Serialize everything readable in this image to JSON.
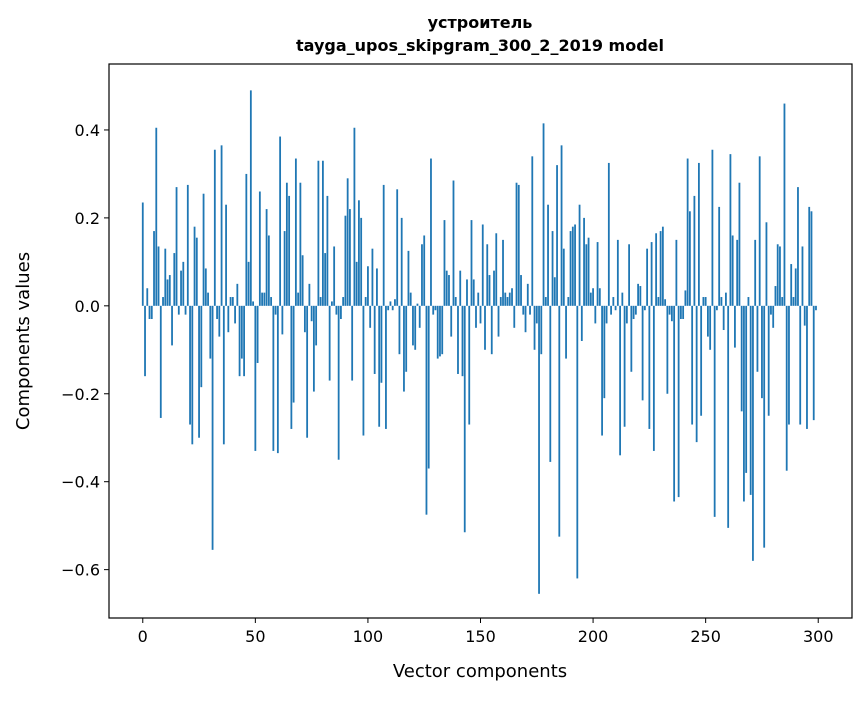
{
  "chart_data": {
    "type": "bar",
    "title": "устроитель",
    "subtitle": "tayga_upos_skipgram_300_2_2019 model",
    "xlabel": "Vector components",
    "ylabel": "Components values",
    "xlim": [
      -15,
      315
    ],
    "ylim": [
      -0.71,
      0.55
    ],
    "grid": false,
    "bar_color": "#1f77b4",
    "x_ticks": [
      0,
      50,
      100,
      150,
      200,
      250,
      300
    ],
    "x_tick_labels": [
      "0",
      "50",
      "100",
      "150",
      "200",
      "250",
      "300"
    ],
    "y_ticks": [
      -0.6,
      -0.4,
      -0.2,
      0.0,
      0.2,
      0.4
    ],
    "y_tick_labels": [
      "−0.6",
      "−0.4",
      "−0.2",
      "0.0",
      "0.2",
      "0.4"
    ],
    "values": [
      0.235,
      -0.16,
      0.04,
      -0.03,
      -0.03,
      0.17,
      0.405,
      0.135,
      -0.255,
      0.02,
      0.13,
      0.06,
      0.07,
      -0.09,
      0.12,
      0.27,
      -0.02,
      0.08,
      0.1,
      -0.02,
      0.275,
      -0.27,
      -0.315,
      0.18,
      0.155,
      -0.3,
      -0.185,
      0.255,
      0.085,
      0.03,
      -0.12,
      -0.555,
      0.355,
      -0.03,
      -0.07,
      0.365,
      -0.315,
      0.23,
      -0.06,
      0.02,
      0.02,
      -0.04,
      0.05,
      -0.16,
      -0.12,
      -0.16,
      0.3,
      0.1,
      0.49,
      0.01,
      -0.33,
      -0.13,
      0.26,
      0.03,
      0.03,
      0.22,
      0.16,
      0.02,
      -0.33,
      -0.02,
      -0.335,
      0.385,
      -0.065,
      0.17,
      0.28,
      0.25,
      -0.28,
      -0.22,
      0.335,
      0.03,
      0.28,
      0.115,
      -0.06,
      -0.3,
      0.05,
      -0.035,
      -0.195,
      -0.09,
      0.33,
      0.02,
      0.33,
      0.12,
      0.25,
      -0.17,
      0.01,
      0.135,
      -0.02,
      -0.35,
      -0.03,
      0.02,
      0.205,
      0.29,
      0.22,
      -0.17,
      0.405,
      0.1,
      0.24,
      0.2,
      -0.295,
      0.02,
      0.09,
      -0.05,
      0.13,
      -0.155,
      0.085,
      -0.275,
      -0.175,
      0.275,
      -0.28,
      -0.01,
      0.01,
      -0.01,
      0.015,
      0.265,
      -0.11,
      0.2,
      -0.195,
      -0.15,
      0.125,
      0.03,
      -0.09,
      -0.1,
      0.005,
      -0.05,
      0.14,
      0.16,
      -0.475,
      -0.37,
      0.335,
      -0.02,
      -0.01,
      -0.12,
      -0.115,
      -0.11,
      0.195,
      0.08,
      0.07,
      -0.07,
      0.285,
      0.02,
      -0.155,
      0.08,
      -0.16,
      -0.515,
      0.06,
      -0.27,
      0.195,
      0.06,
      -0.05,
      0.03,
      -0.04,
      0.185,
      -0.1,
      0.14,
      0.07,
      -0.11,
      0.08,
      0.165,
      -0.07,
      0.02,
      0.15,
      0.03,
      0.02,
      0.03,
      0.04,
      -0.05,
      0.28,
      0.275,
      0.07,
      -0.02,
      -0.06,
      0.05,
      -0.02,
      0.34,
      -0.1,
      -0.04,
      -0.655,
      -0.11,
      0.415,
      0.02,
      0.23,
      -0.355,
      0.17,
      0.065,
      0.32,
      -0.525,
      0.365,
      0.13,
      -0.12,
      0.02,
      0.17,
      0.18,
      0.185,
      -0.62,
      0.23,
      -0.08,
      0.2,
      0.14,
      0.155,
      0.03,
      0.04,
      -0.04,
      0.145,
      0.04,
      -0.295,
      -0.21,
      -0.04,
      0.325,
      -0.02,
      0.02,
      -0.01,
      0.15,
      -0.34,
      0.03,
      -0.275,
      -0.04,
      0.14,
      -0.15,
      -0.03,
      -0.02,
      0.05,
      0.045,
      -0.215,
      -0.01,
      0.13,
      -0.28,
      0.145,
      -0.33,
      0.165,
      0.02,
      0.17,
      0.18,
      0.015,
      -0.2,
      -0.02,
      -0.035,
      -0.445,
      0.15,
      -0.435,
      -0.03,
      -0.03,
      0.035,
      0.335,
      0.215,
      -0.27,
      0.25,
      -0.31,
      0.325,
      -0.25,
      0.02,
      0.02,
      -0.07,
      -0.1,
      0.355,
      -0.48,
      -0.01,
      0.225,
      0.02,
      -0.055,
      0.03,
      -0.505,
      0.345,
      0.16,
      -0.095,
      0.15,
      0.28,
      -0.24,
      -0.445,
      -0.38,
      0.02,
      -0.43,
      -0.58,
      0.15,
      -0.15,
      0.34,
      -0.21,
      -0.55,
      0.19,
      -0.25,
      -0.02,
      -0.05,
      0.045,
      0.14,
      0.135,
      0.02,
      0.46,
      -0.375,
      -0.27,
      0.095,
      0.02,
      0.085,
      0.27,
      -0.27,
      0.135,
      -0.045,
      -0.28,
      0.225,
      0.215,
      -0.26,
      -0.01
    ]
  }
}
